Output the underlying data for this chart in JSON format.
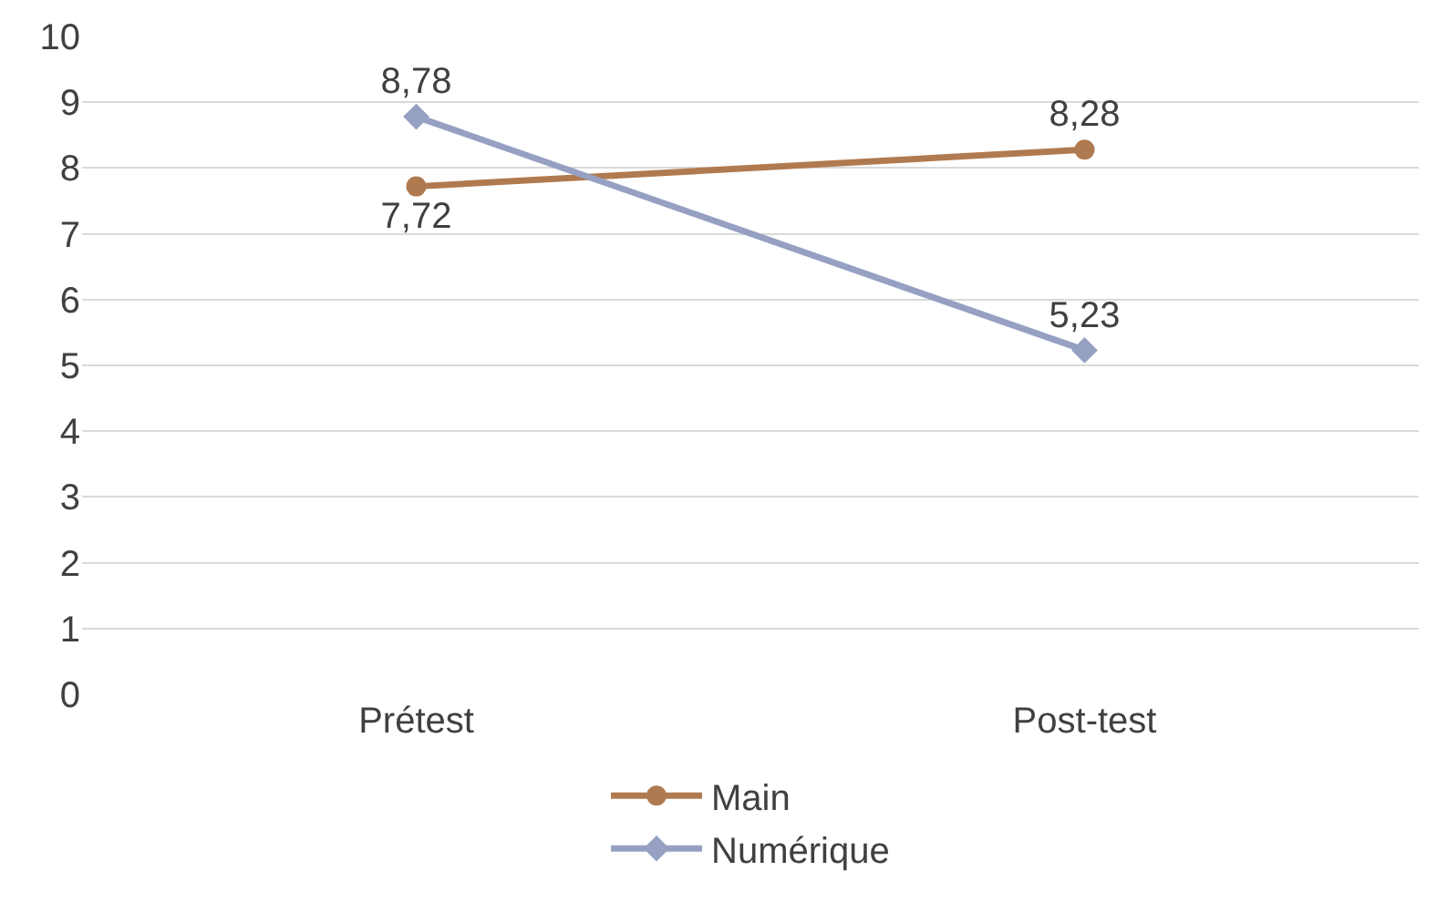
{
  "chart_data": {
    "type": "line",
    "categories": [
      "Prétest",
      "Post-test"
    ],
    "series": [
      {
        "name": "Main",
        "color": "#b07a50",
        "values": [
          7.72,
          8.28
        ],
        "value_labels": [
          "7,72",
          "8,28"
        ],
        "marker": "circle"
      },
      {
        "name": "Numérique",
        "color": "#95a0c2",
        "values": [
          8.78,
          5.23
        ],
        "value_labels": [
          "8,78",
          "5,23"
        ],
        "marker": "diamond"
      }
    ],
    "ylim": [
      0,
      10
    ],
    "yticks": [
      0,
      1,
      2,
      3,
      4,
      5,
      6,
      7,
      8,
      9,
      10
    ],
    "grid": "y",
    "legend": "bottom",
    "line_style": "solid"
  }
}
